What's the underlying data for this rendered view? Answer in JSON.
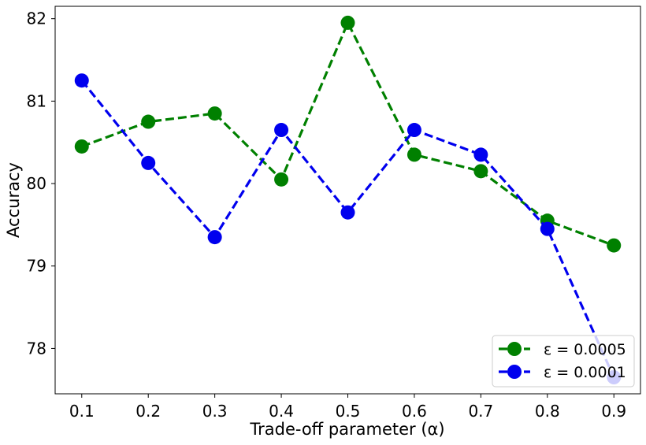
{
  "chart_data": {
    "type": "line",
    "title": "",
    "xlabel": "Trade-off parameter (α)",
    "ylabel": "Accuracy",
    "x": [
      0.1,
      0.2,
      0.3,
      0.4,
      0.5,
      0.6,
      0.7,
      0.8,
      0.9
    ],
    "x_tick_labels": [
      "0.1",
      "0.2",
      "0.3",
      "0.4",
      "0.5",
      "0.6",
      "0.7",
      "0.8",
      "0.9"
    ],
    "y_ticks": [
      78,
      79,
      80,
      81,
      82
    ],
    "y_tick_labels": [
      "78",
      "79",
      "80",
      "81",
      "82"
    ],
    "xlim": [
      0.06,
      0.94
    ],
    "ylim": [
      77.45,
      82.15
    ],
    "grid": false,
    "legend_position": "bottom-right",
    "series": [
      {
        "name": "ε = 0.0005",
        "color": "#008000",
        "line_style": "dashed",
        "marker": "circle",
        "values": [
          80.45,
          80.75,
          80.85,
          80.05,
          81.95,
          80.35,
          80.15,
          79.55,
          79.25
        ]
      },
      {
        "name": "ε = 0.0001",
        "color": "#0000ee",
        "line_style": "dashed",
        "marker": "circle",
        "values": [
          81.25,
          80.25,
          79.35,
          80.65,
          79.65,
          80.65,
          80.35,
          79.45,
          77.65
        ]
      }
    ]
  }
}
